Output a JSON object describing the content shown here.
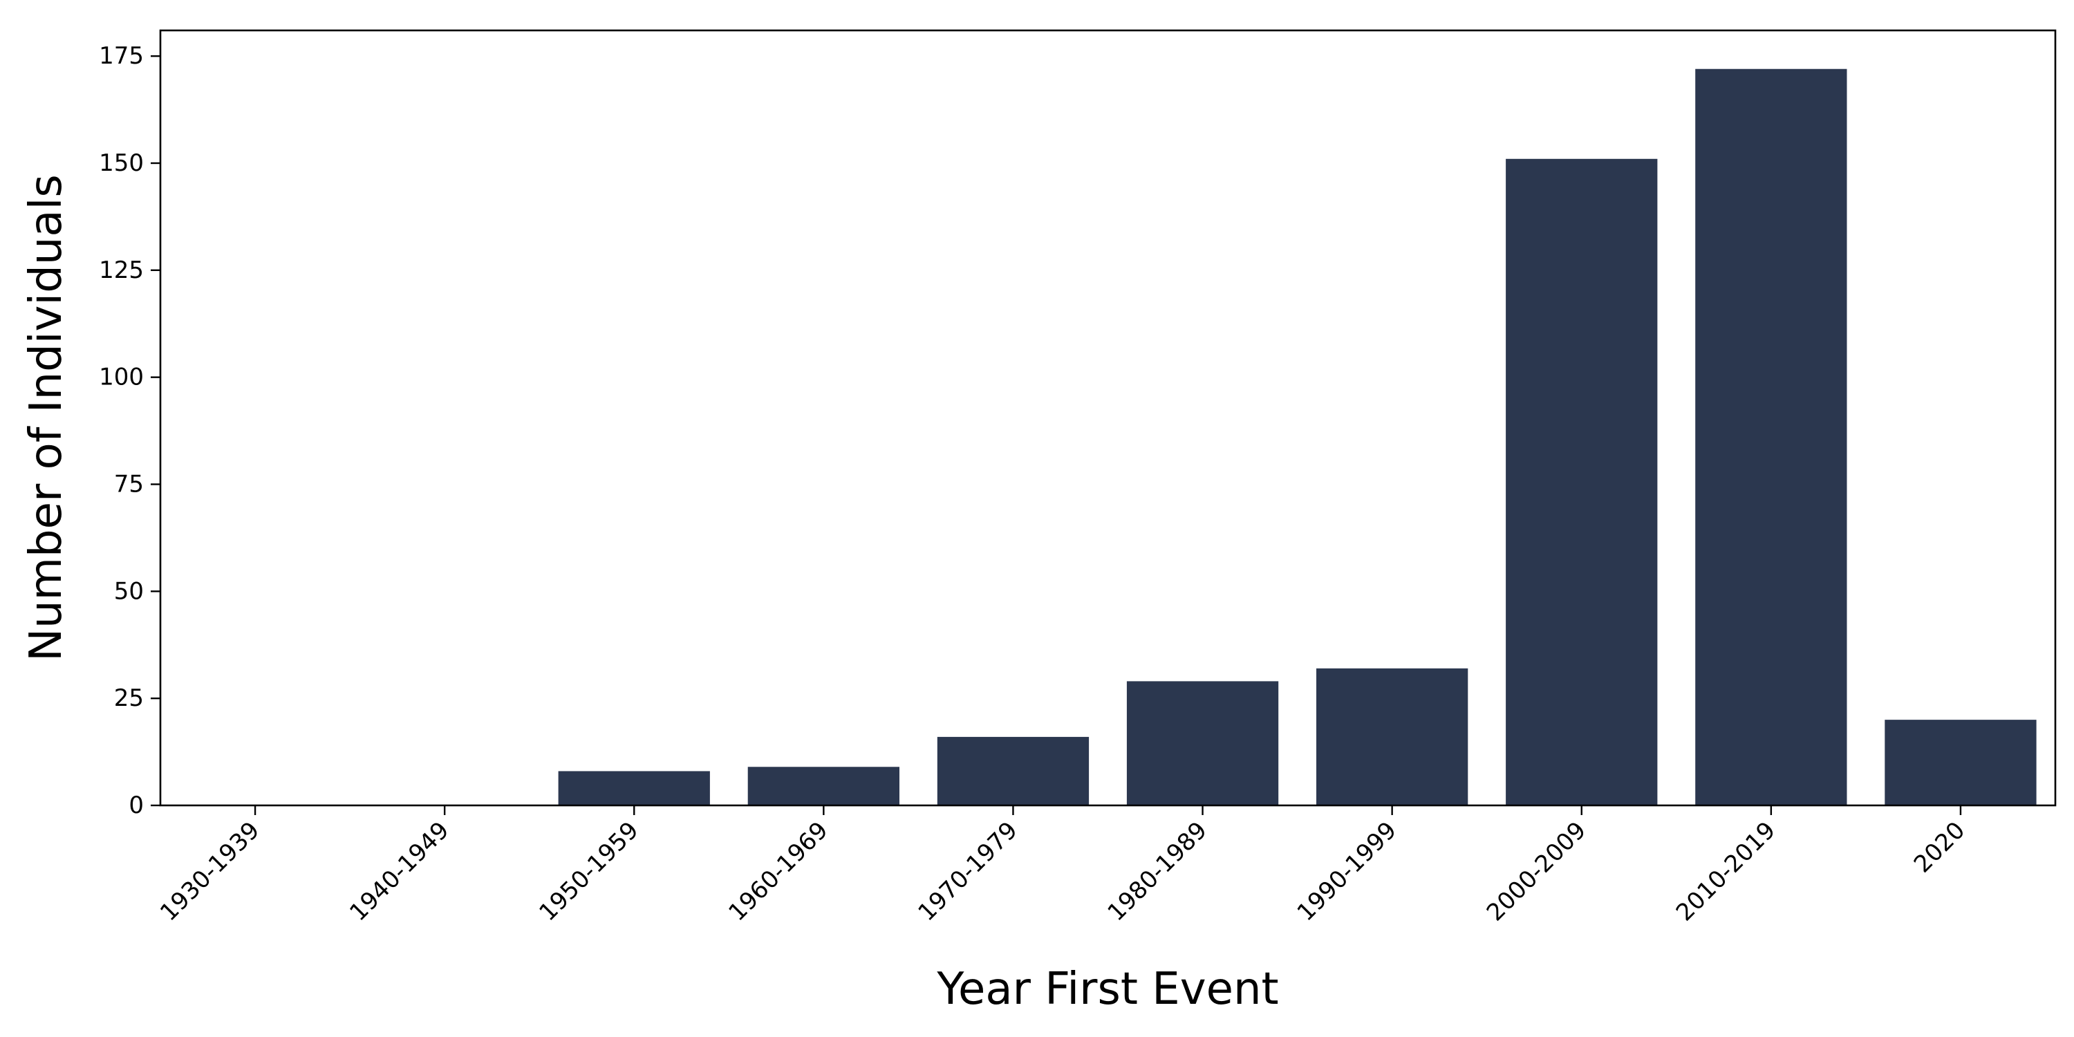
{
  "chart_data": {
    "type": "bar",
    "title": "",
    "xlabel": "Year First Event",
    "ylabel": "Number of Individuals",
    "categories": [
      "1930-1939",
      "1940-1949",
      "1950-1959",
      "1960-1969",
      "1970-1979",
      "1980-1989",
      "1990-1999",
      "2000-2009",
      "2010-2019",
      "2020"
    ],
    "values": [
      0,
      0,
      8,
      9,
      16,
      29,
      32,
      151,
      172,
      20
    ],
    "ylim": [
      0,
      181
    ],
    "yticks": [
      0,
      25,
      50,
      75,
      100,
      125,
      150,
      175
    ],
    "grid": false,
    "legend": "none",
    "bar_color": "#2b374f"
  }
}
